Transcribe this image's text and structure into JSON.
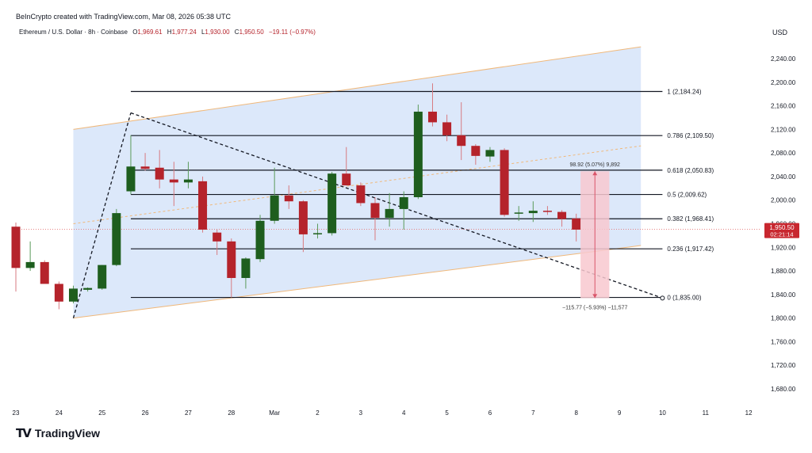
{
  "header": {
    "credit": "BeInCrypto created with TradingView.com, Mar 08, 2026 05:38 UTC",
    "symbol": "Ethereum / U.S. Dollar · 8h · Coinbase",
    "o_label": "O",
    "o_value": "1,969.61",
    "h_label": "H",
    "h_value": "1,977.24",
    "l_label": "L",
    "l_value": "1,930.00",
    "c_label": "C",
    "c_value": "1,950.50",
    "change": "−19.11 (−0.97%)"
  },
  "footer": {
    "logo_text": "TradingView"
  },
  "colors": {
    "up": "#1e5e1e",
    "down": "#b5232b",
    "channel_fill": "#dce8fa",
    "channel_edge": "#f0b87a",
    "fib_line": "#131722",
    "price_line": "#e57373",
    "measure_up": "#f3a3ad",
    "measure_text": "#333333"
  },
  "chart_data": {
    "type": "candlestick",
    "currency": "USD",
    "ylim": [
      1630,
      2280
    ],
    "y_ticks": [
      "2,240.00",
      "2,200.00",
      "2,160.00",
      "2,120.00",
      "2,080.00",
      "2,040.00",
      "2,000.00",
      "1,960.00",
      "1,920.00",
      "1,880.00",
      "1,840.00",
      "1,800.00",
      "1,760.00",
      "1,720.00",
      "1,680.00"
    ],
    "x_ticks": [
      {
        "label": "23",
        "x": 0
      },
      {
        "label": "24",
        "x": 3
      },
      {
        "label": "25",
        "x": 6
      },
      {
        "label": "26",
        "x": 9
      },
      {
        "label": "27",
        "x": 12
      },
      {
        "label": "28",
        "x": 15
      },
      {
        "label": "Mar",
        "x": 18
      },
      {
        "label": "2",
        "x": 21
      },
      {
        "label": "3",
        "x": 24
      },
      {
        "label": "4",
        "x": 27
      },
      {
        "label": "5",
        "x": 30
      },
      {
        "label": "6",
        "x": 33
      },
      {
        "label": "7",
        "x": 36
      },
      {
        "label": "8",
        "x": 39
      },
      {
        "label": "9",
        "x": 42
      },
      {
        "label": "10",
        "x": 45
      },
      {
        "label": "11",
        "x": 48
      },
      {
        "label": "12",
        "x": 51
      }
    ],
    "candles": [
      {
        "x": 0,
        "o": 1955,
        "h": 1962,
        "l": 1845,
        "c": 1885
      },
      {
        "x": 1,
        "o": 1885,
        "h": 1930,
        "l": 1880,
        "c": 1895
      },
      {
        "x": 2,
        "o": 1895,
        "h": 1898,
        "l": 1860,
        "c": 1858
      },
      {
        "x": 3,
        "o": 1858,
        "h": 1862,
        "l": 1815,
        "c": 1828
      },
      {
        "x": 4,
        "o": 1828,
        "h": 1855,
        "l": 1825,
        "c": 1850
      },
      {
        "x": 5,
        "o": 1848,
        "h": 1852,
        "l": 1845,
        "c": 1851
      },
      {
        "x": 6,
        "o": 1850,
        "h": 1890,
        "l": 1848,
        "c": 1890
      },
      {
        "x": 7,
        "o": 1890,
        "h": 1985,
        "l": 1888,
        "c": 1978
      },
      {
        "x": 8,
        "o": 2015,
        "h": 2110,
        "l": 2010,
        "c": 2057
      },
      {
        "x": 9,
        "o": 2057,
        "h": 2080,
        "l": 2050,
        "c": 2053
      },
      {
        "x": 10,
        "o": 2055,
        "h": 2085,
        "l": 2020,
        "c": 2035
      },
      {
        "x": 11,
        "o": 2035,
        "h": 2065,
        "l": 1990,
        "c": 2030
      },
      {
        "x": 12,
        "o": 2030,
        "h": 2065,
        "l": 2020,
        "c": 2035
      },
      {
        "x": 13,
        "o": 2032,
        "h": 2040,
        "l": 1945,
        "c": 1950
      },
      {
        "x": 14,
        "o": 1945,
        "h": 1950,
        "l": 1907,
        "c": 1930
      },
      {
        "x": 15,
        "o": 1930,
        "h": 1935,
        "l": 1835,
        "c": 1868
      },
      {
        "x": 16,
        "o": 1868,
        "h": 1903,
        "l": 1850,
        "c": 1901
      },
      {
        "x": 17,
        "o": 1900,
        "h": 1975,
        "l": 1895,
        "c": 1965
      },
      {
        "x": 18,
        "o": 1965,
        "h": 2055,
        "l": 1960,
        "c": 2008
      },
      {
        "x": 19,
        "o": 2008,
        "h": 2025,
        "l": 1985,
        "c": 1998
      },
      {
        "x": 20,
        "o": 1998,
        "h": 2000,
        "l": 1912,
        "c": 1942
      },
      {
        "x": 21,
        "o": 1942,
        "h": 1960,
        "l": 1935,
        "c": 1944
      },
      {
        "x": 22,
        "o": 1944,
        "h": 2048,
        "l": 1940,
        "c": 2045
      },
      {
        "x": 23,
        "o": 2045,
        "h": 2090,
        "l": 2025,
        "c": 2025
      },
      {
        "x": 24,
        "o": 2025,
        "h": 2030,
        "l": 1990,
        "c": 1995
      },
      {
        "x": 25,
        "o": 1995,
        "h": 2005,
        "l": 1932,
        "c": 1970
      },
      {
        "x": 26,
        "o": 1970,
        "h": 2012,
        "l": 1955,
        "c": 1985
      },
      {
        "x": 27,
        "o": 1985,
        "h": 2015,
        "l": 1950,
        "c": 2005
      },
      {
        "x": 28,
        "o": 2005,
        "h": 2162,
        "l": 2002,
        "c": 2150
      },
      {
        "x": 29,
        "o": 2150,
        "h": 2198,
        "l": 2125,
        "c": 2132
      },
      {
        "x": 30,
        "o": 2132,
        "h": 2145,
        "l": 2100,
        "c": 2110
      },
      {
        "x": 31,
        "o": 2110,
        "h": 2166,
        "l": 2068,
        "c": 2092
      },
      {
        "x": 32,
        "o": 2092,
        "h": 2095,
        "l": 2060,
        "c": 2075
      },
      {
        "x": 33,
        "o": 2074,
        "h": 2090,
        "l": 2065,
        "c": 2085
      },
      {
        "x": 34,
        "o": 2085,
        "h": 2088,
        "l": 1972,
        "c": 1975
      },
      {
        "x": 35,
        "o": 1977,
        "h": 1990,
        "l": 1965,
        "c": 1979
      },
      {
        "x": 36,
        "o": 1978,
        "h": 1998,
        "l": 1963,
        "c": 1982
      },
      {
        "x": 37,
        "o": 1982,
        "h": 1990,
        "l": 1975,
        "c": 1980
      },
      {
        "x": 38,
        "o": 1980,
        "h": 1983,
        "l": 1955,
        "c": 1968
      },
      {
        "x": 39,
        "o": 1969,
        "h": 1977,
        "l": 1930,
        "c": 1950
      }
    ],
    "fib_levels": [
      {
        "ratio": "1",
        "price": 2184.24,
        "label": "1 (2,184.24)"
      },
      {
        "ratio": "0.786",
        "price": 2109.5,
        "label": "0.786 (2,109.50)"
      },
      {
        "ratio": "0.618",
        "price": 2050.83,
        "label": "0.618 (2,050.83)"
      },
      {
        "ratio": "0.5",
        "price": 2009.62,
        "label": "0.5 (2,009.62)"
      },
      {
        "ratio": "0.382",
        "price": 1968.41,
        "label": "0.382 (1,968.41)"
      },
      {
        "ratio": "0.236",
        "price": 1917.42,
        "label": "0.236 (1,917.42)"
      },
      {
        "ratio": "0",
        "price": 1835.0,
        "label": "0 (1,835.00)"
      }
    ],
    "fib_x_range": [
      8,
      45
    ],
    "channel": {
      "upper": [
        [
          4,
          2120
        ],
        [
          43.5,
          2260
        ]
      ],
      "lower": [
        [
          4,
          1800
        ],
        [
          43.5,
          1923
        ]
      ],
      "mid": [
        [
          4,
          1960
        ],
        [
          43.5,
          2092
        ]
      ]
    },
    "trend_lines": [
      {
        "from": [
          4,
          1800
        ],
        "to": [
          8,
          2148
        ]
      },
      {
        "from": [
          8,
          2148
        ],
        "to": [
          45,
          1834
        ]
      }
    ],
    "measure_up": {
      "x_range": [
        39.3,
        41.3
      ],
      "from": 1950,
      "to": 2049,
      "label": "98.92 (5.07%) 9,892"
    },
    "measure_down": {
      "x_range": [
        39.3,
        41.3
      ],
      "from": 1950,
      "to": 1834,
      "label": "−115.77 (−5.93%) −11,577"
    },
    "last_price": {
      "value": 1950.5,
      "label": "1,950.50",
      "countdown": "02:21:14"
    }
  }
}
